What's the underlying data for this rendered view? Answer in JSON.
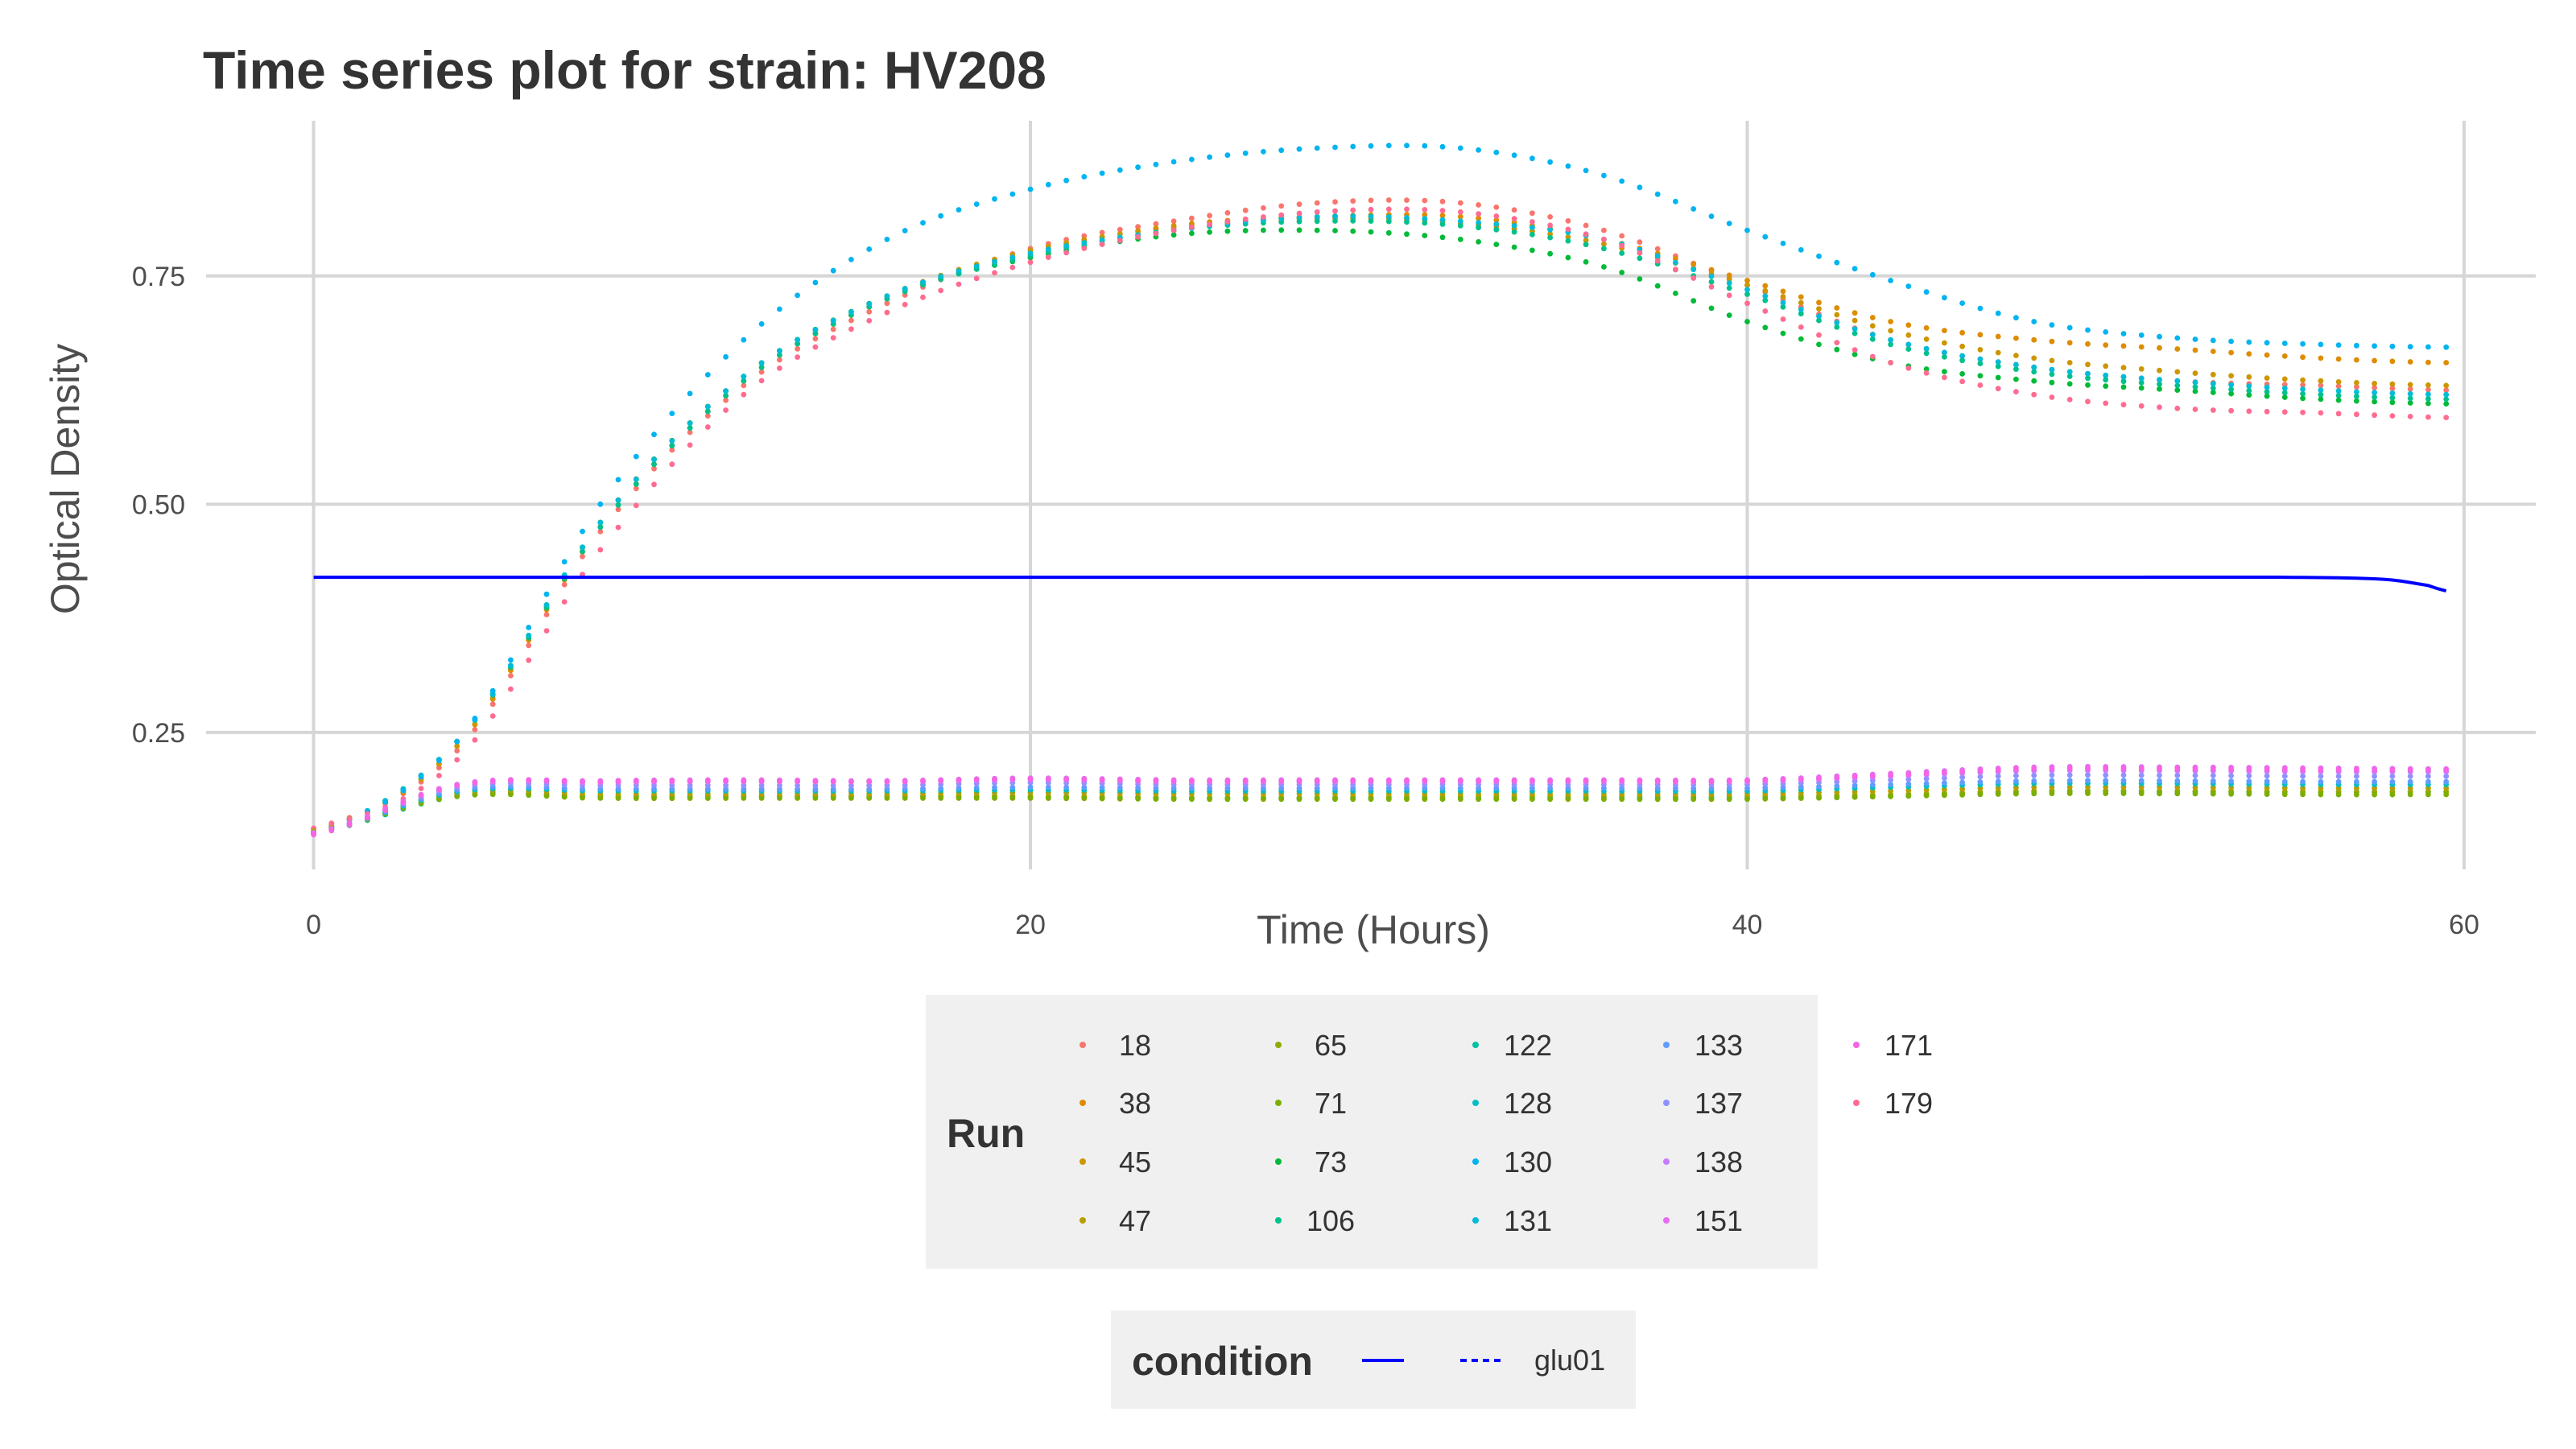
{
  "chart_data": {
    "type": "scatter",
    "title": "Time series plot for strain: HV208",
    "xlabel": "Time (Hours)",
    "ylabel": "Optical Density",
    "xlim": [
      -3,
      62
    ],
    "ylim": [
      0.1,
      0.92
    ],
    "x_ticks": [
      0,
      20,
      40,
      60
    ],
    "y_ticks": [
      0.25,
      0.5,
      0.75
    ],
    "y_tick_labels": [
      "0.25",
      "0.50",
      "0.75"
    ],
    "grid": true,
    "legend_position": "bottom",
    "run_legend": {
      "title": "Run",
      "entries": [
        {
          "label": "18",
          "color": "#F8766D"
        },
        {
          "label": "38",
          "color": "#DE8C00"
        },
        {
          "label": "45",
          "color": "#CD9600"
        },
        {
          "label": "47",
          "color": "#B79F00"
        },
        {
          "label": "65",
          "color": "#93AA00"
        },
        {
          "label": "71",
          "color": "#7CAE00"
        },
        {
          "label": "73",
          "color": "#00BA38"
        },
        {
          "label": "106",
          "color": "#00C08B"
        },
        {
          "label": "122",
          "color": "#00BFA3"
        },
        {
          "label": "128",
          "color": "#00BFC4"
        },
        {
          "label": "130",
          "color": "#00B4F0"
        },
        {
          "label": "131",
          "color": "#00BCD8"
        },
        {
          "label": "133",
          "color": "#619CFF"
        },
        {
          "label": "137",
          "color": "#8F91FF"
        },
        {
          "label": "138",
          "color": "#C77CFF"
        },
        {
          "label": "151",
          "color": "#E76BF3"
        },
        {
          "label": "171",
          "color": "#F564E3"
        },
        {
          "label": "179",
          "color": "#FF6C91"
        }
      ]
    },
    "condition_legend": {
      "title": "condition",
      "entries": [
        {
          "label": "",
          "color": "#0000FF",
          "linetype": "solid"
        },
        {
          "label": "glu01",
          "color": "#0000FF",
          "linetype": "dashed"
        }
      ]
    },
    "series": [
      {
        "name": "18",
        "color": "#F8766D",
        "x": [
          0,
          4,
          8,
          12,
          16,
          20,
          24,
          28,
          32,
          36,
          40,
          44,
          48,
          52,
          56,
          59.5
        ],
        "y": [
          0.145,
          0.23,
          0.47,
          0.63,
          0.72,
          0.78,
          0.81,
          0.83,
          0.83,
          0.8,
          0.74,
          0.68,
          0.65,
          0.635,
          0.63,
          0.625
        ]
      },
      {
        "name": "38",
        "color": "#DE8C00",
        "x": [
          0,
          4,
          8,
          12,
          16,
          20,
          24,
          28,
          32,
          36,
          40,
          44,
          48,
          52,
          56,
          59.5
        ],
        "y": [
          0.14,
          0.235,
          0.475,
          0.635,
          0.725,
          0.775,
          0.805,
          0.815,
          0.815,
          0.79,
          0.745,
          0.7,
          0.68,
          0.67,
          0.66,
          0.655
        ]
      },
      {
        "name": "45",
        "color": "#CD9600",
        "x": [
          0,
          4,
          8,
          12,
          16,
          20,
          24,
          28,
          32,
          36,
          40,
          44,
          48,
          52,
          56,
          59.5
        ],
        "y": [
          0.142,
          0.235,
          0.48,
          0.64,
          0.728,
          0.778,
          0.803,
          0.813,
          0.808,
          0.785,
          0.74,
          0.69,
          0.66,
          0.645,
          0.635,
          0.63
        ]
      },
      {
        "name": "73",
        "color": "#00BA38",
        "x": [
          0,
          4,
          8,
          12,
          16,
          20,
          24,
          28,
          32,
          36,
          40,
          44,
          48,
          52,
          56,
          59.5
        ],
        "y": [
          0.14,
          0.24,
          0.48,
          0.64,
          0.728,
          0.77,
          0.795,
          0.8,
          0.79,
          0.76,
          0.7,
          0.655,
          0.635,
          0.625,
          0.615,
          0.61
        ]
      },
      {
        "name": "106",
        "color": "#00C08B",
        "x": [
          0,
          4,
          8,
          12,
          16,
          20,
          24,
          28,
          32,
          36,
          40,
          44,
          48,
          52,
          56,
          59.5
        ],
        "y": [
          0.14,
          0.24,
          0.475,
          0.635,
          0.725,
          0.772,
          0.8,
          0.81,
          0.805,
          0.78,
          0.73,
          0.675,
          0.645,
          0.63,
          0.62,
          0.615
        ]
      },
      {
        "name": "131",
        "color": "#00BCD8",
        "x": [
          0,
          4,
          8,
          12,
          16,
          20,
          24,
          28,
          32,
          36,
          40,
          44,
          48,
          52,
          56,
          59.5
        ],
        "y": [
          0.14,
          0.24,
          0.48,
          0.64,
          0.728,
          0.775,
          0.8,
          0.815,
          0.81,
          0.79,
          0.735,
          0.68,
          0.65,
          0.635,
          0.625,
          0.62
        ]
      },
      {
        "name": "130",
        "color": "#00B4F0",
        "x": [
          0,
          4,
          8,
          12,
          16,
          20,
          24,
          28,
          32,
          36,
          40,
          44,
          48,
          52,
          56,
          59.5
        ],
        "y": [
          0.14,
          0.24,
          0.5,
          0.68,
          0.79,
          0.845,
          0.875,
          0.89,
          0.89,
          0.86,
          0.8,
          0.745,
          0.7,
          0.682,
          0.675,
          0.672
        ]
      },
      {
        "name": "179",
        "color": "#FF6C91",
        "x": [
          0,
          4,
          8,
          12,
          16,
          20,
          24,
          28,
          32,
          36,
          40,
          44,
          48,
          52,
          56,
          59.5
        ],
        "y": [
          0.145,
          0.22,
          0.45,
          0.62,
          0.71,
          0.765,
          0.8,
          0.82,
          0.82,
          0.79,
          0.72,
          0.655,
          0.62,
          0.605,
          0.6,
          0.595
        ]
      },
      {
        "name": "122",
        "color": "#00BFA3",
        "x": [
          0,
          4,
          8,
          12,
          16,
          20,
          24,
          28,
          32,
          36,
          40,
          44,
          48,
          52,
          56,
          59.5
        ],
        "y": [
          0.14,
          0.18,
          0.18,
          0.18,
          0.18,
          0.18,
          0.178,
          0.178,
          0.178,
          0.178,
          0.178,
          0.18,
          0.185,
          0.185,
          0.185,
          0.185
        ]
      },
      {
        "name": "65",
        "color": "#93AA00",
        "x": [
          0,
          4,
          8,
          12,
          16,
          20,
          24,
          28,
          32,
          36,
          40,
          44,
          48,
          52,
          56,
          59.5
        ],
        "y": [
          0.14,
          0.182,
          0.18,
          0.18,
          0.18,
          0.18,
          0.179,
          0.179,
          0.18,
          0.18,
          0.18,
          0.182,
          0.186,
          0.186,
          0.185,
          0.185
        ]
      },
      {
        "name": "71",
        "color": "#7CAE00",
        "x": [
          0,
          4,
          8,
          12,
          16,
          20,
          24,
          28,
          32,
          36,
          40,
          44,
          48,
          52,
          56,
          59.5
        ],
        "y": [
          0.142,
          0.18,
          0.178,
          0.178,
          0.178,
          0.178,
          0.177,
          0.177,
          0.177,
          0.177,
          0.177,
          0.18,
          0.183,
          0.183,
          0.182,
          0.182
        ]
      },
      {
        "name": "47",
        "color": "#B79F00",
        "x": [
          0,
          4,
          8,
          12,
          16,
          20,
          24,
          28,
          32,
          36,
          40,
          44,
          48,
          52,
          56,
          59.5
        ],
        "y": [
          0.142,
          0.184,
          0.183,
          0.183,
          0.183,
          0.184,
          0.183,
          0.183,
          0.183,
          0.183,
          0.183,
          0.186,
          0.19,
          0.19,
          0.189,
          0.189
        ]
      },
      {
        "name": "128",
        "color": "#00BFC4",
        "x": [
          0,
          4,
          8,
          12,
          16,
          20,
          24,
          28,
          32,
          36,
          40,
          44,
          48,
          52,
          56,
          59.5
        ],
        "y": [
          0.14,
          0.185,
          0.186,
          0.186,
          0.186,
          0.187,
          0.186,
          0.186,
          0.186,
          0.186,
          0.186,
          0.19,
          0.194,
          0.194,
          0.193,
          0.193
        ]
      },
      {
        "name": "133",
        "color": "#619CFF",
        "x": [
          0,
          4,
          8,
          12,
          16,
          20,
          24,
          28,
          32,
          36,
          40,
          44,
          48,
          52,
          56,
          59.5
        ],
        "y": [
          0.14,
          0.187,
          0.188,
          0.188,
          0.188,
          0.19,
          0.189,
          0.189,
          0.189,
          0.189,
          0.189,
          0.193,
          0.197,
          0.197,
          0.196,
          0.196
        ]
      },
      {
        "name": "137",
        "color": "#8F91FF",
        "x": [
          0,
          4,
          8,
          12,
          16,
          20,
          24,
          28,
          32,
          36,
          40,
          44,
          48,
          52,
          56,
          59.5
        ],
        "y": [
          0.14,
          0.19,
          0.192,
          0.192,
          0.192,
          0.195,
          0.193,
          0.193,
          0.193,
          0.193,
          0.193,
          0.198,
          0.203,
          0.203,
          0.202,
          0.202
        ]
      },
      {
        "name": "138",
        "color": "#C77CFF",
        "x": [
          0,
          4,
          8,
          12,
          16,
          20,
          24,
          28,
          32,
          36,
          40,
          44,
          48,
          52,
          56,
          59.5
        ],
        "y": [
          0.14,
          0.192,
          0.195,
          0.196,
          0.196,
          0.198,
          0.196,
          0.196,
          0.196,
          0.196,
          0.196,
          0.202,
          0.208,
          0.208,
          0.207,
          0.207
        ]
      },
      {
        "name": "151",
        "color": "#E76BF3",
        "x": [
          0,
          4,
          8,
          12,
          16,
          20,
          24,
          28,
          32,
          36,
          40,
          44,
          48,
          52,
          56,
          59.5
        ],
        "y": [
          0.14,
          0.193,
          0.197,
          0.198,
          0.197,
          0.2,
          0.198,
          0.198,
          0.198,
          0.198,
          0.198,
          0.205,
          0.212,
          0.212,
          0.211,
          0.21
        ]
      },
      {
        "name": "171",
        "color": "#F564E3",
        "x": [
          0,
          4,
          8,
          12,
          16,
          20,
          24,
          28,
          32,
          36,
          40,
          44,
          48,
          52,
          56,
          59.5
        ],
        "y": [
          0.138,
          0.192,
          0.196,
          0.197,
          0.196,
          0.199,
          0.197,
          0.197,
          0.197,
          0.197,
          0.197,
          0.203,
          0.21,
          0.21,
          0.209,
          0.209
        ]
      }
    ],
    "condition_line": {
      "x": [
        0,
        10,
        20,
        30,
        40,
        50,
        55,
        57,
        58,
        59,
        59.5
      ],
      "y": [
        0.42,
        0.42,
        0.42,
        0.42,
        0.42,
        0.42,
        0.42,
        0.419,
        0.417,
        0.411,
        0.405
      ]
    }
  }
}
